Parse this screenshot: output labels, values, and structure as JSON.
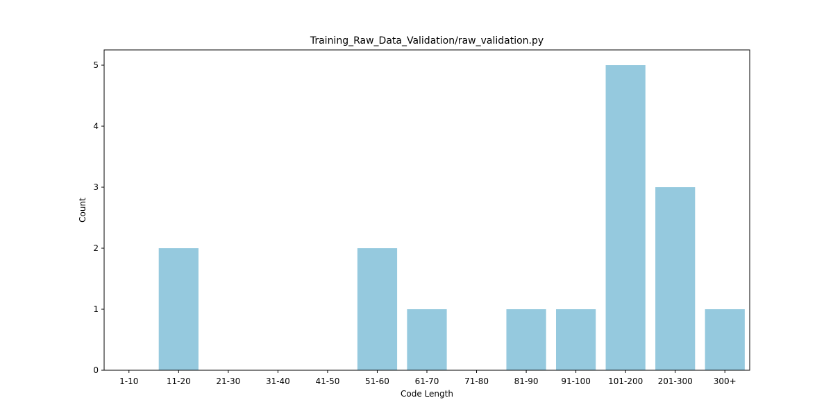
{
  "chart_data": {
    "type": "bar",
    "title": "Training_Raw_Data_Validation/raw_validation.py",
    "xlabel": "Code Length",
    "ylabel": "Count",
    "categories": [
      "1-10",
      "11-20",
      "21-30",
      "31-40",
      "41-50",
      "51-60",
      "61-70",
      "71-80",
      "81-90",
      "91-100",
      "101-200",
      "201-300",
      "300+"
    ],
    "values": [
      0,
      2,
      0,
      0,
      0,
      2,
      1,
      0,
      1,
      1,
      5,
      3,
      1
    ],
    "ylim": [
      0,
      5.25
    ],
    "yticks": [
      0,
      1,
      2,
      3,
      4,
      5
    ],
    "bar_color": "#95c9de",
    "grid": false,
    "legend": "none"
  }
}
